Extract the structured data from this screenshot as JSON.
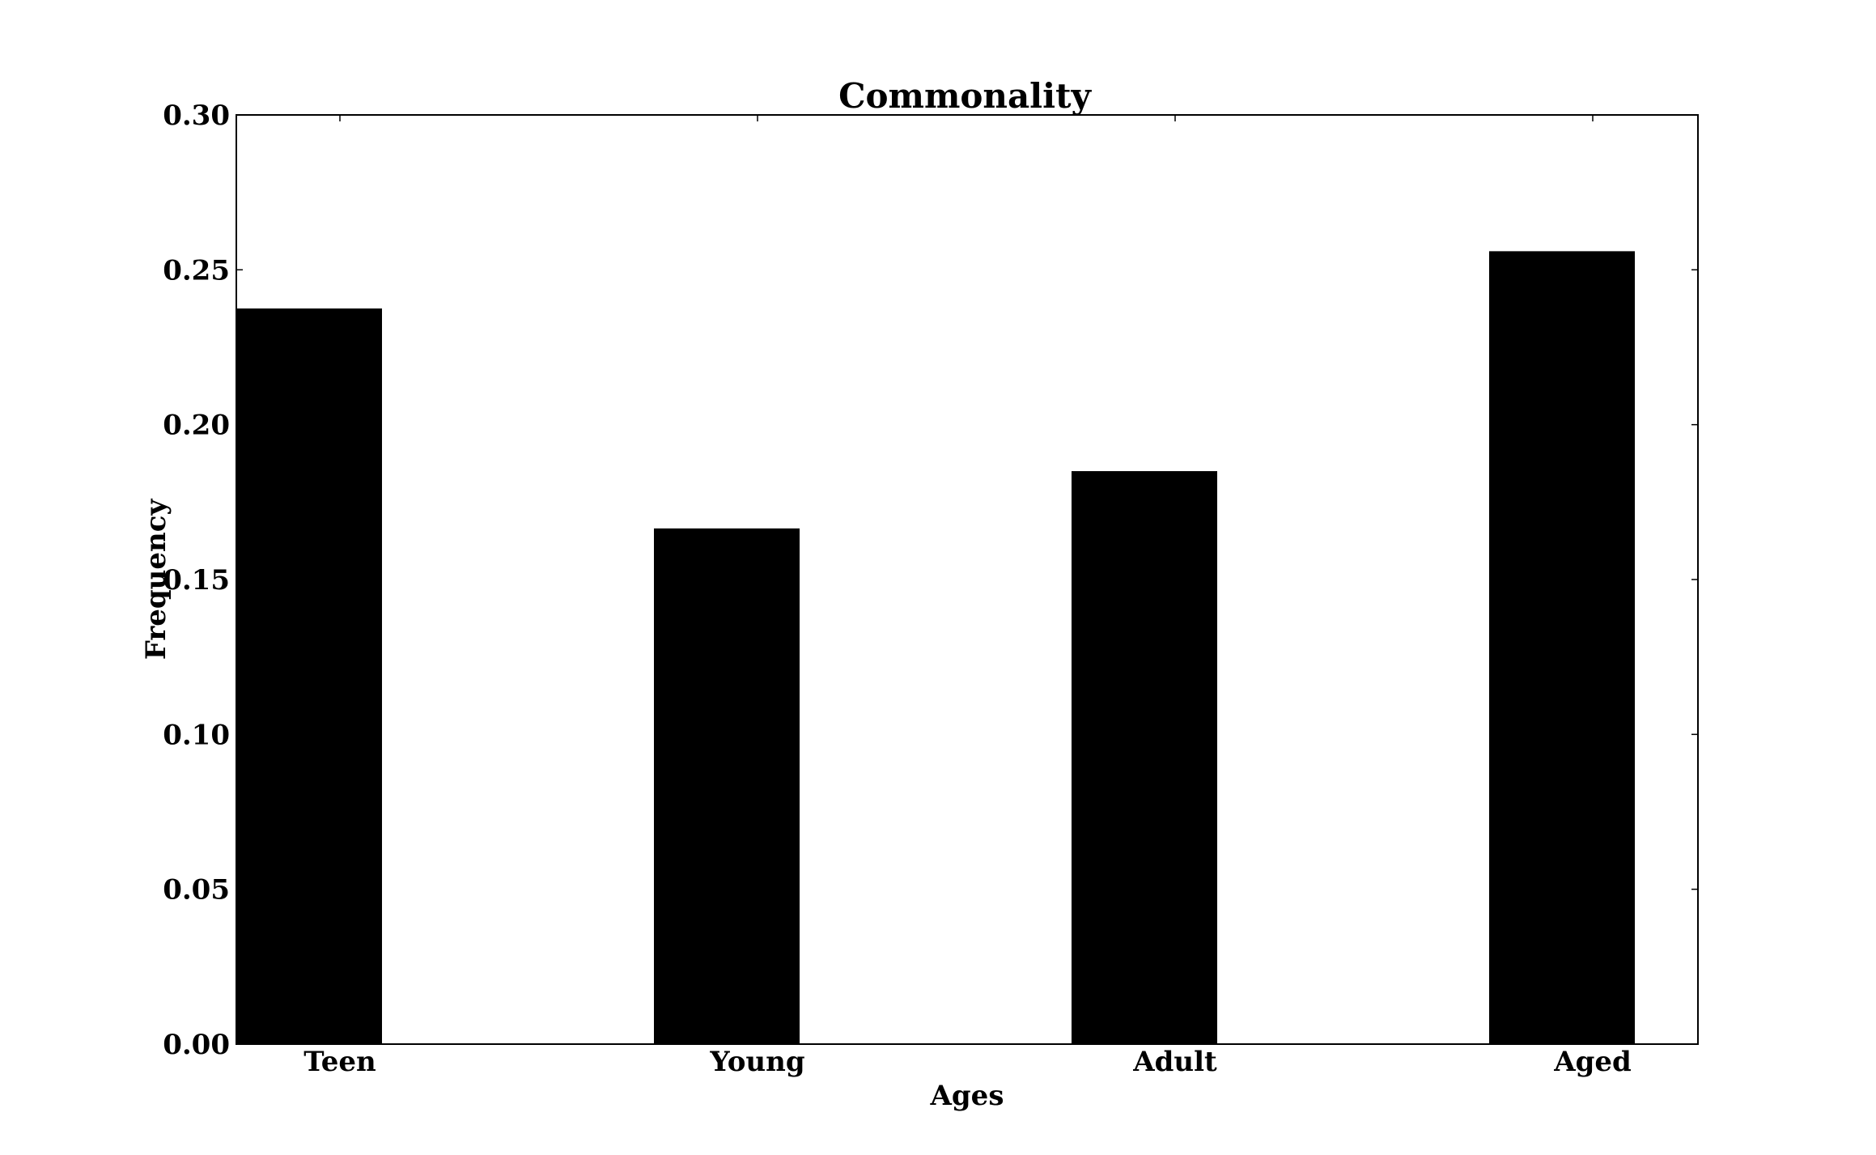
{
  "chart_data": {
    "type": "bar",
    "title": "Commonality",
    "xlabel": "Ages",
    "ylabel": "Frequency",
    "categories": [
      "Teen",
      "Young",
      "Adult",
      "Aged"
    ],
    "values": [
      0.2375,
      0.1665,
      0.185,
      0.256
    ],
    "ylim": [
      0.0,
      0.3
    ],
    "yticks": [
      "0.00",
      "0.05",
      "0.10",
      "0.15",
      "0.20",
      "0.25",
      "0.30"
    ],
    "grid": false,
    "legend": "none",
    "bar_color": "#000000"
  }
}
